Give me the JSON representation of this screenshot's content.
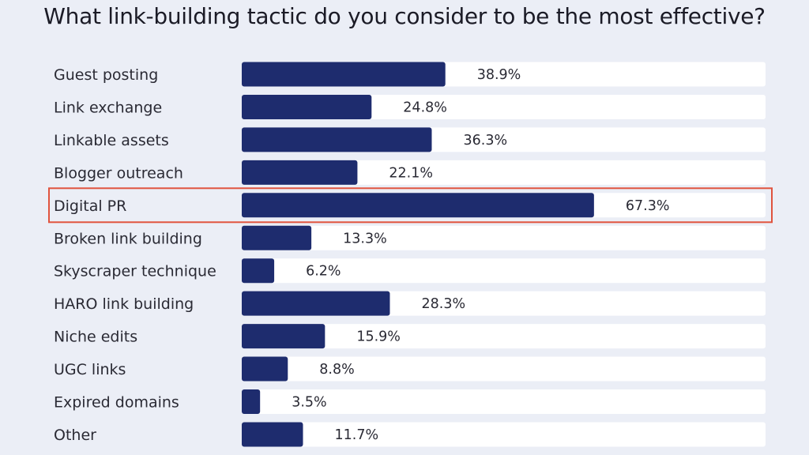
{
  "chart_data": {
    "type": "bar",
    "orientation": "horizontal",
    "title": "What link-building tactic do you consider to be the most effective?",
    "categories": [
      "Guest posting",
      "Link exchange",
      "Linkable assets",
      "Blogger outreach",
      "Digital PR",
      "Broken link building",
      "Skyscraper technique",
      "HARO link building",
      "Niche edits",
      "UGC links",
      "Expired domains",
      "Other"
    ],
    "values": [
      38.9,
      24.8,
      36.3,
      22.1,
      67.3,
      13.3,
      6.2,
      28.3,
      15.9,
      8.8,
      3.5,
      11.7
    ],
    "value_labels": [
      "38.9%",
      "24.8%",
      "36.3%",
      "22.1%",
      "67.3%",
      "13.3%",
      "6.2%",
      "28.3%",
      "15.9%",
      "8.8%",
      "3.5%",
      "11.7%"
    ],
    "xlim": [
      0,
      100
    ],
    "unit": "%",
    "grid": false,
    "legend": "none",
    "highlighted_category": "Digital PR"
  },
  "colors": {
    "bar": "#1e2c6e",
    "track": "#ffffff",
    "background": "#ebeef6",
    "highlight_outline": "#e0533e",
    "text": "#2a2a34"
  }
}
